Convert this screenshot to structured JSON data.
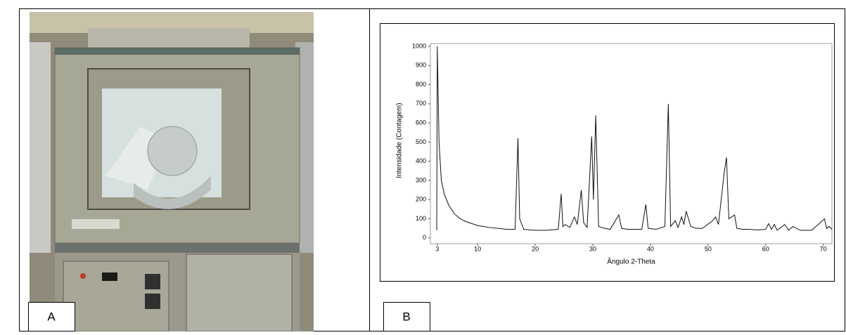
{
  "panels": [
    {
      "label": "A"
    },
    {
      "label": "B"
    }
  ],
  "chart_data": {
    "type": "line",
    "xlabel": "Ângulo 2-Theta",
    "ylabel": "Intensidade (Contagem)",
    "color": "#111111",
    "xlim": [
      1.8,
      71.5
    ],
    "xticks": [
      3,
      10,
      20,
      30,
      40,
      50,
      60,
      70
    ],
    "ylim": [
      -30,
      1000
    ],
    "yticks": [
      0,
      100,
      200,
      300,
      400,
      500,
      600,
      700,
      800,
      900,
      1000
    ],
    "grid": false,
    "x": [
      2.9,
      3.0,
      3.3,
      3.7,
      4.2,
      5.0,
      6.0,
      7.0,
      8.0,
      9.0,
      10.0,
      11.0,
      12.0,
      13.5,
      15.0,
      16.5,
      17.0,
      17.3,
      18.0,
      19.0,
      20.0,
      22.0,
      24.0,
      24.5,
      24.8,
      25.2,
      26.0,
      26.8,
      27.3,
      28.0,
      28.4,
      29.0,
      29.8,
      30.1,
      30.5,
      31.0,
      32.0,
      33.0,
      34.5,
      35.0,
      36.0,
      37.0,
      38.5,
      39.2,
      39.6,
      41.0,
      42.5,
      43.1,
      43.5,
      44.3,
      44.8,
      45.4,
      45.8,
      46.2,
      47.0,
      48.0,
      49.0,
      50.8,
      51.3,
      51.8,
      52.8,
      53.2,
      53.6,
      54.6,
      55.0,
      56.0,
      57.0,
      58.5,
      60.0,
      60.5,
      61.0,
      61.5,
      62.0,
      63.3,
      64.0,
      64.7,
      66.0,
      68.0,
      70.2,
      70.6,
      71.0,
      71.5
    ],
    "values": [
      40,
      1000,
      500,
      300,
      230,
      170,
      125,
      100,
      85,
      75,
      65,
      60,
      55,
      50,
      45,
      45,
      520,
      100,
      45,
      42,
      40,
      40,
      45,
      230,
      60,
      70,
      55,
      110,
      70,
      250,
      80,
      55,
      530,
      200,
      640,
      60,
      50,
      45,
      120,
      50,
      45,
      45,
      45,
      175,
      50,
      45,
      60,
      700,
      60,
      90,
      55,
      110,
      70,
      140,
      60,
      50,
      50,
      90,
      110,
      70,
      340,
      420,
      100,
      120,
      50,
      45,
      45,
      42,
      45,
      75,
      45,
      70,
      40,
      70,
      40,
      60,
      40,
      40,
      100,
      50,
      60,
      45
    ]
  }
}
